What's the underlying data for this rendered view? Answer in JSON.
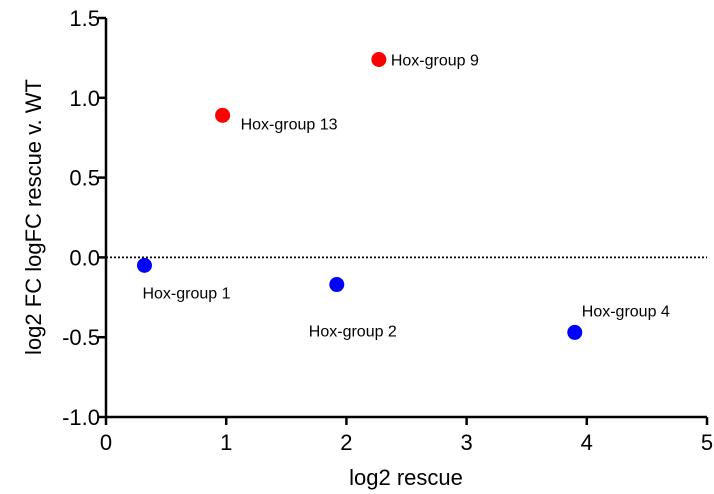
{
  "chart_data": {
    "type": "scatter",
    "xlabel": "log2 rescue",
    "ylabel": "log2 FC logFC rescue v. WT",
    "xlim": [
      0,
      5
    ],
    "ylim": [
      -1.0,
      1.5
    ],
    "x_ticks": [
      0,
      1,
      2,
      3,
      4,
      5
    ],
    "x_tick_labels": [
      "0",
      "1",
      "2",
      "3",
      "4",
      "5"
    ],
    "y_ticks": [
      -1.0,
      -0.5,
      0.0,
      0.5,
      1.0,
      1.5
    ],
    "y_tick_labels": [
      "-1.0",
      "-0.5",
      "0.0",
      "0.5",
      "1.0",
      "1.5"
    ],
    "grid": false,
    "reference_line": {
      "y": 0,
      "style": "dotted"
    },
    "points": [
      {
        "label": "Hox-group 1",
        "x": 0.32,
        "y": -0.05,
        "color": "#0000ff"
      },
      {
        "label": "Hox-group 2",
        "x": 1.92,
        "y": -0.17,
        "color": "#0000ff"
      },
      {
        "label": "Hox-group 4",
        "x": 3.9,
        "y": -0.47,
        "color": "#0000ff"
      },
      {
        "label": "Hox-group 13",
        "x": 0.97,
        "y": 0.89,
        "color": "#ff0000"
      },
      {
        "label": "Hox-group 9",
        "x": 2.27,
        "y": 1.24,
        "color": "#ff0000"
      }
    ]
  }
}
